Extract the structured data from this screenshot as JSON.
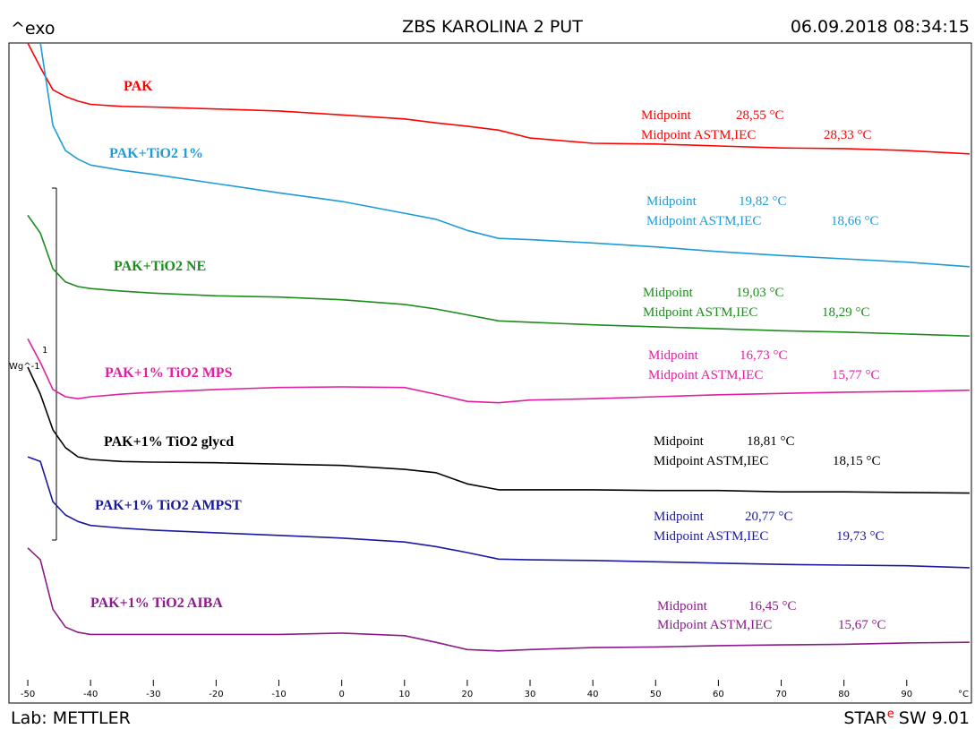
{
  "header": {
    "exo": "^exo",
    "title": "ZBS KAROLINA 2 PUT",
    "date": "06.09.2018 08:34:15"
  },
  "footer": {
    "lab": "Lab: METTLER",
    "software": "STAR",
    "software_sup": "e",
    "software_version": "SW 9.01"
  },
  "chart_data": {
    "type": "line",
    "title": "ZBS KAROLINA 2 PUT",
    "x_label": "°C",
    "scale_bar": {
      "value": "1",
      "unit": "Wg^-1"
    },
    "x": [
      -50,
      -48,
      -46,
      -44,
      -42,
      -40,
      -35,
      -30,
      -20,
      -10,
      0,
      10,
      15,
      20,
      25,
      30,
      40,
      50,
      60,
      70,
      80,
      90,
      100
    ],
    "xlim": [
      -53,
      100.3
    ],
    "xticks": [
      -50,
      -40,
      -30,
      -20,
      -10,
      0,
      10,
      20,
      30,
      40,
      50,
      60,
      70,
      80,
      90
    ],
    "ylim": [
      0,
      100
    ],
    "series": [
      {
        "name": "PAK",
        "color": "#ff0000",
        "midpoint_label": "Midpoint",
        "midpoint": "28,55 °C",
        "astm_label": "Midpoint ASTM,IEC",
        "astm": "28,33 °C",
        "values": [
          100,
          96.3,
          92.9,
          91.9,
          91.2,
          90.7,
          90.4,
          90.3,
          90.0,
          89.7,
          89.1,
          88.5,
          87.9,
          87.4,
          86.8,
          85.6,
          84.8,
          84.7,
          84.4,
          84.1,
          84.0,
          83.7,
          83.2
        ]
      },
      {
        "name": "PAK+TiO2 1%",
        "color": "#1e9bd7",
        "midpoint_label": "Midpoint",
        "midpoint": "19,82 °C",
        "astm_label": "Midpoint ASTM,IEC",
        "astm": "18,66 °C",
        "values": [
          null,
          100,
          87.5,
          83.7,
          82.4,
          81.5,
          80.7,
          80.1,
          78.7,
          77.3,
          76.0,
          74.2,
          73.3,
          71.6,
          70.4,
          70.2,
          69.7,
          69.1,
          68.4,
          67.8,
          67.3,
          66.8,
          66.1
        ]
      },
      {
        "name": "PAK+TiO2 NE",
        "color": "#1e8c1e",
        "midpoint_label": "Midpoint",
        "midpoint": "19,03 °C",
        "astm_label": "Midpoint ASTM,IEC",
        "astm": "18,29 °C",
        "values": [
          73.9,
          71.2,
          65.8,
          63.8,
          63.1,
          62.8,
          62.4,
          62.1,
          61.7,
          61.5,
          61.1,
          60.4,
          59.7,
          58.8,
          57.9,
          57.7,
          57.3,
          57.0,
          56.7,
          56.4,
          56.2,
          55.9,
          55.6
        ]
      },
      {
        "name": "PAK+1% TiO2 MPS",
        "color": "#e020a0",
        "midpoint_label": "Midpoint",
        "midpoint": "16,73 °C",
        "astm_label": "Midpoint ASTM,IEC",
        "astm": "15,77 °C",
        "values": [
          55.2,
          51.6,
          47.5,
          46.4,
          46.1,
          46.4,
          46.8,
          47.1,
          47.5,
          47.8,
          47.9,
          47.8,
          46.8,
          45.7,
          45.5,
          45.9,
          46.1,
          46.4,
          46.7,
          46.9,
          47.1,
          47.2,
          47.4
        ]
      },
      {
        "name": "PAK+1% TiO2 glycd",
        "color": "#000000",
        "midpoint_label": "Midpoint",
        "midpoint": "18,81 °C",
        "astm_label": "Midpoint ASTM,IEC",
        "astm": "18,15 °C",
        "values": [
          50.9,
          46.8,
          41.4,
          38.7,
          37.3,
          36.9,
          36.6,
          36.5,
          36.4,
          36.2,
          36.0,
          35.4,
          34.9,
          33.2,
          32.3,
          32.3,
          32.3,
          32.2,
          32.2,
          32.0,
          32.0,
          31.9,
          31.8
        ]
      },
      {
        "name": "PAK+1% TiO2 AMPST",
        "color": "#1a1aa0",
        "midpoint_label": "Midpoint",
        "midpoint": "20,77 °C",
        "astm_label": "Midpoint ASTM,IEC",
        "astm": "19,73 °C",
        "values": [
          37.3,
          36.6,
          30.5,
          28.5,
          27.5,
          26.9,
          26.5,
          26.2,
          25.8,
          25.4,
          25.0,
          24.4,
          23.7,
          22.8,
          21.8,
          21.7,
          21.6,
          21.4,
          21.2,
          21.0,
          20.9,
          20.8,
          20.5
        ]
      },
      {
        "name": "PAK+1% TiO2 AIBA",
        "color": "#8b1a8b",
        "midpoint_label": "Midpoint",
        "midpoint": "16,45 °C",
        "astm_label": "Midpoint ASTM,IEC",
        "astm": "15,67 °C",
        "values": [
          23.5,
          21.7,
          14.2,
          11.5,
          10.7,
          10.4,
          10.4,
          10.4,
          10.4,
          10.4,
          10.6,
          10.2,
          9.2,
          8.1,
          7.9,
          8.1,
          8.4,
          8.5,
          8.7,
          8.8,
          8.9,
          9.1,
          9.2
        ]
      }
    ]
  }
}
